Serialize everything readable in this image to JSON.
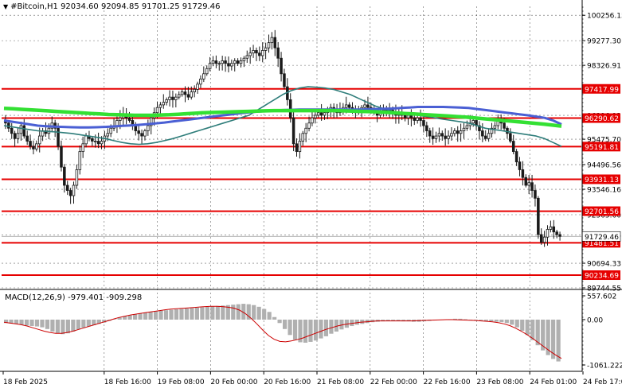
{
  "header": {
    "symbol_line": "#Bitcoin,H1  92034.60 92094.85 91701.25 91729.46"
  },
  "macd_header": {
    "label": "MACD(12,26,9) -979.401 -909.298"
  },
  "colors": {
    "bull_candle": "#1a1a1a",
    "bear_candle": "#1a1a1a",
    "ma_fast": "#2e7d7a",
    "ma_mid": "#4a5fd4",
    "ma_slow": "#33e033",
    "levels": "#e60000",
    "price_tag_bg": "#e60000",
    "current_price_bg": "#ffffff",
    "macd_hist": "#b0b0b0",
    "macd_signal": "#cc0000",
    "grid": "#000000"
  },
  "chart_data": [
    {
      "type": "candlestick",
      "title": "#Bitcoin,H1",
      "ylim": [
        89744.55,
        101000
      ],
      "y_ticks": [
        "100256.15",
        "99277.30",
        "98326.91",
        "96396.92",
        "95475.70",
        "94496.56",
        "93546.16",
        "92565.60",
        "91779.46",
        "90694.33",
        "89744.55"
      ],
      "x_ticks": [
        "18 Feb 2025",
        "18 Feb 16:00",
        "19 Feb 08:00",
        "20 Feb 00:00",
        "20 Feb 16:00",
        "21 Feb 08:00",
        "22 Feb 00:00",
        "22 Feb 16:00",
        "23 Feb 08:00",
        "24 Feb 01:00",
        "24 Feb 17:00"
      ],
      "horizontal_levels": [
        97417.99,
        96290.62,
        95191.81,
        93931.13,
        92701.56,
        91481.51,
        90234.69
      ],
      "level_labels": [
        "97417.99",
        "96290.62",
        "95191.81",
        "93931.13",
        "92701.56",
        "91481.51",
        "90234.69"
      ],
      "current_price": "91729.46",
      "grid": true,
      "price_path": [
        96100,
        95900,
        95700,
        95500,
        95700,
        96000,
        95600,
        95400,
        95200,
        95100,
        95300,
        95600,
        95800,
        95700,
        95900,
        96100,
        95900,
        95200,
        94400,
        93700,
        93500,
        93300,
        93700,
        94300,
        95000,
        95300,
        95600,
        95500,
        95400,
        95400,
        95300,
        95400,
        95600,
        95700,
        95900,
        96000,
        96200,
        96300,
        96400,
        96300,
        96200,
        96000,
        95800,
        95700,
        95600,
        95800,
        96000,
        96300,
        96500,
        96700,
        96800,
        96900,
        97000,
        97100,
        97000,
        97100,
        97200,
        97300,
        97200,
        97100,
        97300,
        97400,
        97600,
        97800,
        98000,
        98200,
        98400,
        98500,
        98400,
        98400,
        98500,
        98400,
        98300,
        98400,
        98500,
        98400,
        98500,
        98600,
        98700,
        98800,
        98900,
        98800,
        98700,
        98900,
        99000,
        99200,
        99400,
        99000,
        98600,
        98000,
        97500,
        97000,
        96300,
        95300,
        95000,
        95400,
        95700,
        95900,
        96100,
        96300,
        96400,
        96500,
        96400,
        96500,
        96600,
        96700,
        96600,
        96500,
        96600,
        96700,
        96800,
        96700,
        96600,
        96500,
        96600,
        96700,
        96800,
        96700,
        96600,
        96500,
        96400,
        96500,
        96600,
        96500,
        96600,
        96500,
        96400,
        96500,
        96400,
        96300,
        96400,
        96300,
        96200,
        96300,
        96200,
        96000,
        95800,
        95600,
        95500,
        95600,
        95700,
        95600,
        95500,
        95600,
        95700,
        95800,
        95700,
        95800,
        95900,
        96000,
        96100,
        96200,
        96000,
        95800,
        95600,
        95500,
        95700,
        95900,
        96000,
        96200,
        96100,
        95900,
        95700,
        95400,
        95000,
        94600,
        94300,
        94000,
        93700,
        93800,
        93500,
        93200,
        91800,
        91500,
        91700,
        92000,
        92100,
        91900,
        91800,
        91729
      ],
      "ma_fast": [
        96000,
        95950,
        95900,
        95850,
        95800,
        95780,
        95760,
        95730,
        95700,
        95650,
        95600,
        95550,
        95500,
        95420,
        95350,
        95300,
        95280,
        95300,
        95350,
        95420,
        95500,
        95600,
        95700,
        95800,
        95900,
        96000,
        96100,
        96200,
        96300,
        96400,
        96600,
        96800,
        97000,
        97200,
        97350,
        97450,
        97500,
        97480,
        97450,
        97400,
        97300,
        97200,
        97050,
        96900,
        96750,
        96650,
        96550,
        96500,
        96450,
        96400,
        96350,
        96300,
        96250,
        96200,
        96150,
        96100,
        96000,
        95900,
        95850,
        95800,
        95750,
        95700,
        95650,
        95600,
        95500,
        95350,
        95200
      ],
      "ma_mid": [
        96200,
        96150,
        96100,
        96050,
        96000,
        95980,
        95960,
        95950,
        95940,
        95930,
        95930,
        95940,
        95950,
        95970,
        95990,
        96010,
        96030,
        96060,
        96090,
        96120,
        96160,
        96200,
        96240,
        96280,
        96320,
        96360,
        96400,
        96440,
        96480,
        96510,
        96540,
        96560,
        96580,
        96600,
        96610,
        96620,
        96620,
        96620,
        96620,
        96620,
        96620,
        96620,
        96620,
        96630,
        96640,
        96650,
        96660,
        96680,
        96700,
        96720,
        96720,
        96720,
        96720,
        96710,
        96700,
        96680,
        96640,
        96600,
        96560,
        96520,
        96480,
        96440,
        96400,
        96350,
        96300,
        96200,
        96050
      ],
      "ma_slow": [
        96670,
        96650,
        96630,
        96610,
        96590,
        96570,
        96550,
        96530,
        96510,
        96490,
        96470,
        96450,
        96430,
        96420,
        96410,
        96400,
        96400,
        96400,
        96410,
        96420,
        96440,
        96460,
        96480,
        96500,
        96510,
        96520,
        96530,
        96540,
        96550,
        96560,
        96570,
        96580,
        96580,
        96580,
        96580,
        96580,
        96580,
        96580,
        96580,
        96570,
        96560,
        96550,
        96540,
        96530,
        96510,
        96490,
        96470,
        96450,
        96430,
        96410,
        96390,
        96370,
        96350,
        96330,
        96300,
        96270,
        96240,
        96210,
        96180,
        96150,
        96120,
        96090,
        96060,
        96020,
        95980
      ]
    },
    {
      "type": "macd",
      "title": "MACD(12,26,9)",
      "y_ticks": [
        "557.602",
        "0.00",
        "-1061.222"
      ],
      "ylim": [
        -1061.222,
        557.602
      ],
      "histogram": [
        -80,
        -90,
        -100,
        -120,
        -140,
        -150,
        -160,
        -180,
        -220,
        -280,
        -320,
        -340,
        -320,
        -280,
        -230,
        -190,
        -160,
        -130,
        -100,
        -70,
        -30,
        10,
        50,
        80,
        100,
        120,
        140,
        160,
        180,
        200,
        210,
        220,
        230,
        240,
        250,
        260,
        270,
        280,
        290,
        300,
        310,
        320,
        330,
        340,
        350,
        360,
        370,
        360,
        340,
        300,
        250,
        180,
        60,
        -80,
        -220,
        -360,
        -470,
        -530,
        -540,
        -520,
        -490,
        -440,
        -390,
        -330,
        -280,
        -230,
        -190,
        -150,
        -120,
        -100,
        -80,
        -60,
        -50,
        -40,
        -30,
        -30,
        -30,
        -40,
        -40,
        -50,
        -50,
        -40,
        -30,
        -20,
        -10,
        0,
        10,
        20,
        20,
        10,
        0,
        -10,
        -20,
        -30,
        -40,
        -50,
        -60,
        -80,
        -120,
        -180,
        -260,
        -360,
        -480,
        -600,
        -720,
        -830,
        -920,
        -979
      ],
      "signal": [
        -60,
        -80,
        -100,
        -120,
        -150,
        -190,
        -230,
        -270,
        -300,
        -320,
        -320,
        -300,
        -270,
        -230,
        -190,
        -150,
        -110,
        -70,
        -30,
        10,
        50,
        80,
        110,
        130,
        150,
        170,
        190,
        210,
        230,
        245,
        255,
        265,
        275,
        285,
        295,
        305,
        310,
        310,
        305,
        290,
        270,
        220,
        140,
        30,
        -100,
        -240,
        -370,
        -460,
        -510,
        -520,
        -500,
        -470,
        -430,
        -380,
        -330,
        -280,
        -230,
        -190,
        -150,
        -120,
        -100,
        -80,
        -60,
        -50,
        -40,
        -30,
        -30,
        -30,
        -30,
        -30,
        -30,
        -30,
        -25,
        -20,
        -15,
        -10,
        -5,
        0,
        0,
        -5,
        -10,
        -15,
        -20,
        -30,
        -40,
        -50,
        -70,
        -100,
        -140,
        -200,
        -270,
        -350,
        -440,
        -540,
        -640,
        -740,
        -830,
        -909
      ]
    }
  ]
}
